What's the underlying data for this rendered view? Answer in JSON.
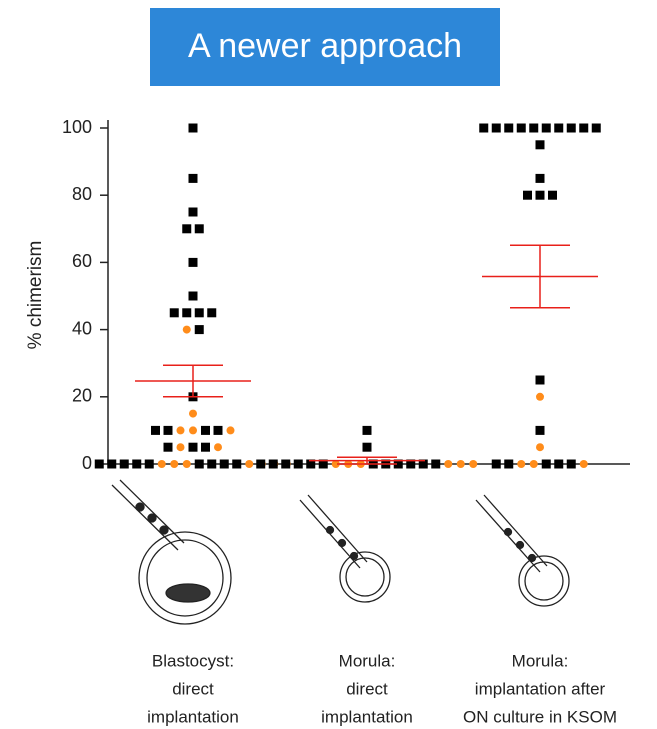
{
  "header": {
    "title": "A newer approach"
  },
  "chart_data": {
    "type": "dotplot",
    "ylabel": "% chimerism",
    "ylim": [
      0,
      101
    ],
    "yticks": [
      0,
      20,
      40,
      60,
      80,
      100
    ],
    "categories": [
      [
        "Blastocyst:",
        "direct",
        "implantation"
      ],
      [
        "Morula:",
        "direct",
        "implantation"
      ],
      [
        "Morula:",
        "implantation after",
        "ON culture in KSOM"
      ]
    ],
    "series": [
      {
        "color": "#000000",
        "marker": "square",
        "values": [
          [
            100,
            85,
            75,
            70,
            70,
            60,
            50,
            45,
            45,
            45,
            45,
            40,
            20,
            10,
            10,
            10,
            10,
            5,
            5,
            5,
            0,
            0,
            0,
            0,
            0,
            0,
            0,
            0,
            0
          ],
          [
            10,
            5,
            0,
            0,
            0,
            0,
            0,
            0,
            0,
            0,
            0,
            0,
            0,
            0
          ],
          [
            100,
            100,
            100,
            100,
            100,
            100,
            100,
            100,
            100,
            100,
            95,
            85,
            80,
            80,
            80,
            25,
            10,
            0,
            0,
            0,
            0,
            0
          ]
        ]
      },
      {
        "color": "#ff8c1a",
        "marker": "circle",
        "values": [
          [
            40,
            15,
            10,
            10,
            10,
            5,
            5,
            0,
            0,
            0,
            0,
            0,
            0,
            0
          ],
          [
            0,
            0,
            0,
            0,
            0,
            0
          ],
          [
            20,
            5,
            0,
            0,
            0
          ]
        ]
      }
    ],
    "mean": [
      24.7,
      1,
      55.8
    ],
    "error": [
      4.7,
      1,
      9.3
    ],
    "mean_color": "#e8201a"
  }
}
